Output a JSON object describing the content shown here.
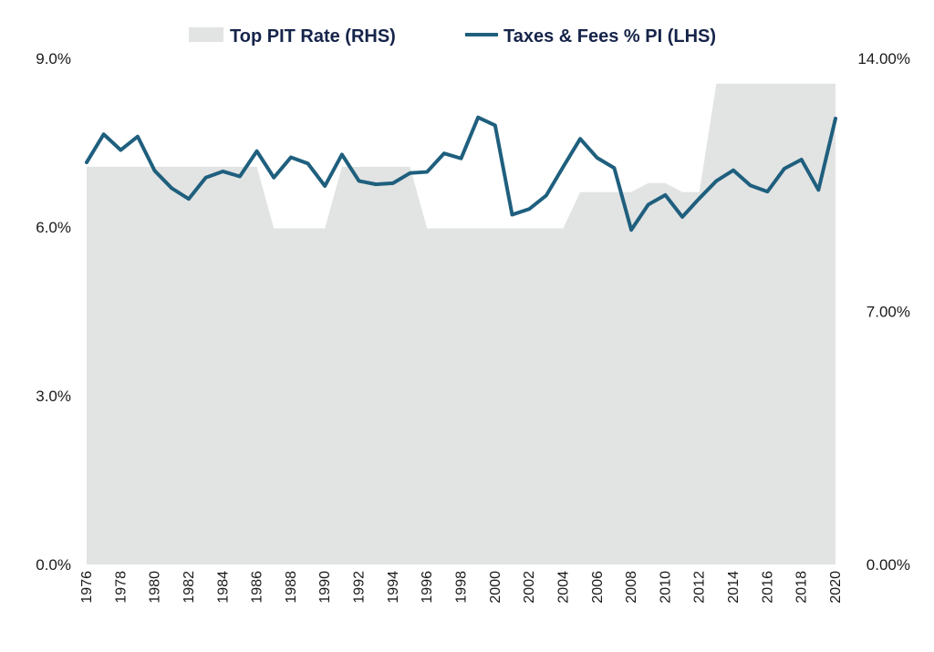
{
  "chart_data": {
    "type": "line",
    "legend": {
      "placement": "top-center",
      "items": [
        {
          "label": "Top PIT Rate (RHS)",
          "kind": "area",
          "color": "#e2e3e3"
        },
        {
          "label": "Taxes & Fees % PI (LHS)",
          "kind": "line",
          "color": "#1f5f7e"
        }
      ]
    },
    "grid": false,
    "x": [
      1976,
      1977,
      1978,
      1979,
      1980,
      1981,
      1982,
      1983,
      1984,
      1985,
      1986,
      1987,
      1988,
      1989,
      1990,
      1991,
      1992,
      1993,
      1994,
      1995,
      1996,
      1997,
      1998,
      1999,
      2000,
      2001,
      2002,
      2003,
      2004,
      2005,
      2006,
      2007,
      2008,
      2009,
      2010,
      2011,
      2012,
      2013,
      2014,
      2015,
      2016,
      2017,
      2018,
      2019,
      2020
    ],
    "x_tick_labels": [
      "1976",
      "1978",
      "1980",
      "1982",
      "1984",
      "1986",
      "1988",
      "1990",
      "1992",
      "1994",
      "1996",
      "1998",
      "2000",
      "2002",
      "2004",
      "2006",
      "2008",
      "2010",
      "2012",
      "2014",
      "2016",
      "2018",
      "2020"
    ],
    "y_left": {
      "min": 0,
      "max": 9,
      "ticks": [
        0,
        3,
        6,
        9
      ],
      "tick_labels": [
        "0.0%",
        "3.0%",
        "6.0%",
        "9.0%"
      ]
    },
    "y_right": {
      "min": 0,
      "max": 14,
      "ticks": [
        0,
        7,
        14
      ],
      "tick_labels": [
        "0.00%",
        "7.00%",
        "14.00%"
      ]
    },
    "series": [
      {
        "name": "Top PIT Rate (RHS)",
        "type": "area",
        "axis": "right",
        "color": "#e2e3e3",
        "values": [
          11.0,
          11.0,
          11.0,
          11.0,
          11.0,
          11.0,
          11.0,
          11.0,
          11.0,
          11.0,
          11.0,
          9.3,
          9.3,
          9.3,
          9.3,
          11.0,
          11.0,
          11.0,
          11.0,
          11.0,
          9.3,
          9.3,
          9.3,
          9.3,
          9.3,
          9.3,
          9.3,
          9.3,
          9.3,
          10.3,
          10.3,
          10.3,
          10.3,
          10.55,
          10.55,
          10.3,
          10.3,
          13.3,
          13.3,
          13.3,
          13.3,
          13.3,
          13.3,
          13.3,
          13.3
        ]
      },
      {
        "name": "Taxes & Fees % PI (LHS)",
        "type": "line",
        "axis": "left",
        "color": "#1f5f7e",
        "values": [
          7.15,
          7.65,
          7.37,
          7.61,
          7.0,
          6.69,
          6.5,
          6.88,
          6.99,
          6.9,
          7.35,
          6.88,
          7.24,
          7.13,
          6.73,
          7.29,
          6.82,
          6.76,
          6.78,
          6.96,
          6.98,
          7.31,
          7.22,
          7.95,
          7.81,
          6.22,
          6.32,
          6.56,
          7.07,
          7.57,
          7.23,
          7.05,
          5.95,
          6.4,
          6.57,
          6.18,
          6.51,
          6.82,
          7.01,
          6.74,
          6.63,
          7.04,
          7.2,
          6.66,
          7.93
        ]
      }
    ]
  }
}
